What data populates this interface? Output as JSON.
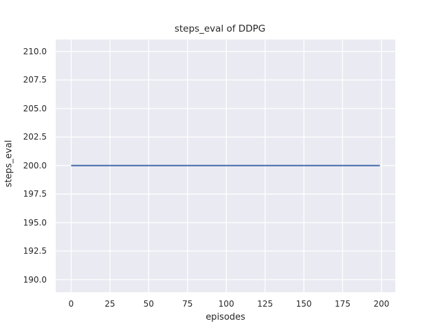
{
  "chart_data": {
    "type": "line",
    "title": "steps_eval of DDPG",
    "xlabel": "episodes",
    "ylabel": "steps_eval",
    "x_ticks": [
      0,
      25,
      50,
      75,
      100,
      125,
      150,
      175,
      200
    ],
    "y_tick_labels": [
      "190.0",
      "192.5",
      "195.0",
      "197.5",
      "200.0",
      "202.5",
      "205.0",
      "207.5",
      "210.0"
    ],
    "xlim": [
      -9.95,
      208.95
    ],
    "ylim": [
      188.9,
      211.05
    ],
    "grid": true,
    "series": [
      {
        "x": [
          0,
          199
        ],
        "y": [
          200.0,
          200.0
        ],
        "color": "#4c72b0"
      }
    ],
    "style": {
      "figure_background": "#ffffff",
      "axes_background": "#eaeaf2",
      "grid_color": "#ffffff",
      "text_color": "#262626",
      "line_width": 2.1,
      "grid_width": 1.3
    }
  }
}
